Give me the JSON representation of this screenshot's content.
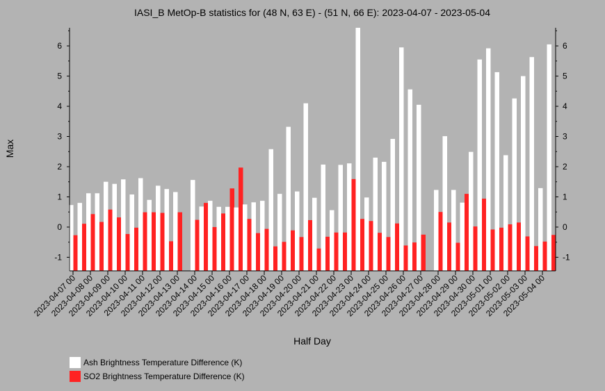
{
  "chart_data": {
    "type": "bar",
    "title": "IASI_B MetOp-B statistics for (48 N, 63 E) - (51 N, 66 E): 2023-04-07 - 2023-05-04",
    "xlabel": "Half Day",
    "ylabel": "Max",
    "ylim": [
      -1.45,
      6.6
    ],
    "yticks": [
      -1,
      0,
      1,
      2,
      3,
      4,
      5,
      6
    ],
    "x_tick_labels": [
      "2023-04-07 00",
      "2023-04-08 00",
      "2023-04-09 00",
      "2023-04-10 00",
      "2023-04-11 00",
      "2023-04-12 00",
      "2023-04-13 00",
      "2023-04-14 00",
      "2023-04-15 00",
      "2023-04-16 00",
      "2023-04-17 00",
      "2023-04-18 00",
      "2023-04-19 00",
      "2023-04-20 00",
      "2023-04-21 00",
      "2023-04-22 00",
      "2023-04-23 00",
      "2023-04-24 00",
      "2023-04-25 00",
      "2023-04-26 00",
      "2023-04-27 00",
      "2023-04-28 00",
      "2023-04-29 00",
      "2023-04-30 00",
      "2023-05-01 00",
      "2023-05-02 00",
      "2023-05-03 00",
      "2023-05-04 00"
    ],
    "legend_position": "bottom-left",
    "series": [
      {
        "name": "Ash Brightness Temperature Difference (K)",
        "color": "#ffffff",
        "values": [
          0.73,
          0.8,
          1.12,
          1.12,
          1.5,
          1.43,
          1.58,
          1.08,
          1.62,
          0.9,
          1.37,
          1.26,
          1.16,
          null,
          1.56,
          0.68,
          0.87,
          0.67,
          0.67,
          0.65,
          0.75,
          0.82,
          0.87,
          2.58,
          1.1,
          3.32,
          1.18,
          4.1,
          0.97,
          2.07,
          0.56,
          2.06,
          2.11,
          6.6,
          0.98,
          2.3,
          2.16,
          2.92,
          5.95,
          4.56,
          4.05,
          null,
          1.23,
          3.01,
          1.23,
          0.81,
          2.49,
          5.55,
          5.92,
          5.13,
          2.38,
          4.26,
          5.0,
          5.63,
          1.29,
          6.05
        ]
      },
      {
        "name": "SO2 Brightness Temperature Difference (K)",
        "color": "#ff2222",
        "values": [
          -0.27,
          0.11,
          0.43,
          0.17,
          0.58,
          0.32,
          -0.23,
          -0.02,
          0.49,
          0.49,
          0.47,
          -0.47,
          0.49,
          null,
          0.24,
          0.8,
          0.0,
          0.45,
          1.28,
          1.97,
          0.27,
          -0.2,
          -0.06,
          -0.64,
          -0.49,
          -0.11,
          -0.33,
          0.23,
          -0.71,
          -0.32,
          -0.18,
          -0.18,
          1.59,
          0.27,
          0.2,
          -0.19,
          -0.33,
          0.12,
          -0.61,
          -0.51,
          -0.25,
          null,
          0.5,
          0.15,
          -0.52,
          1.1,
          0.02,
          0.94,
          -0.08,
          -0.02,
          0.09,
          0.15,
          -0.31,
          -0.63,
          -0.48,
          -0.26
        ]
      }
    ]
  }
}
